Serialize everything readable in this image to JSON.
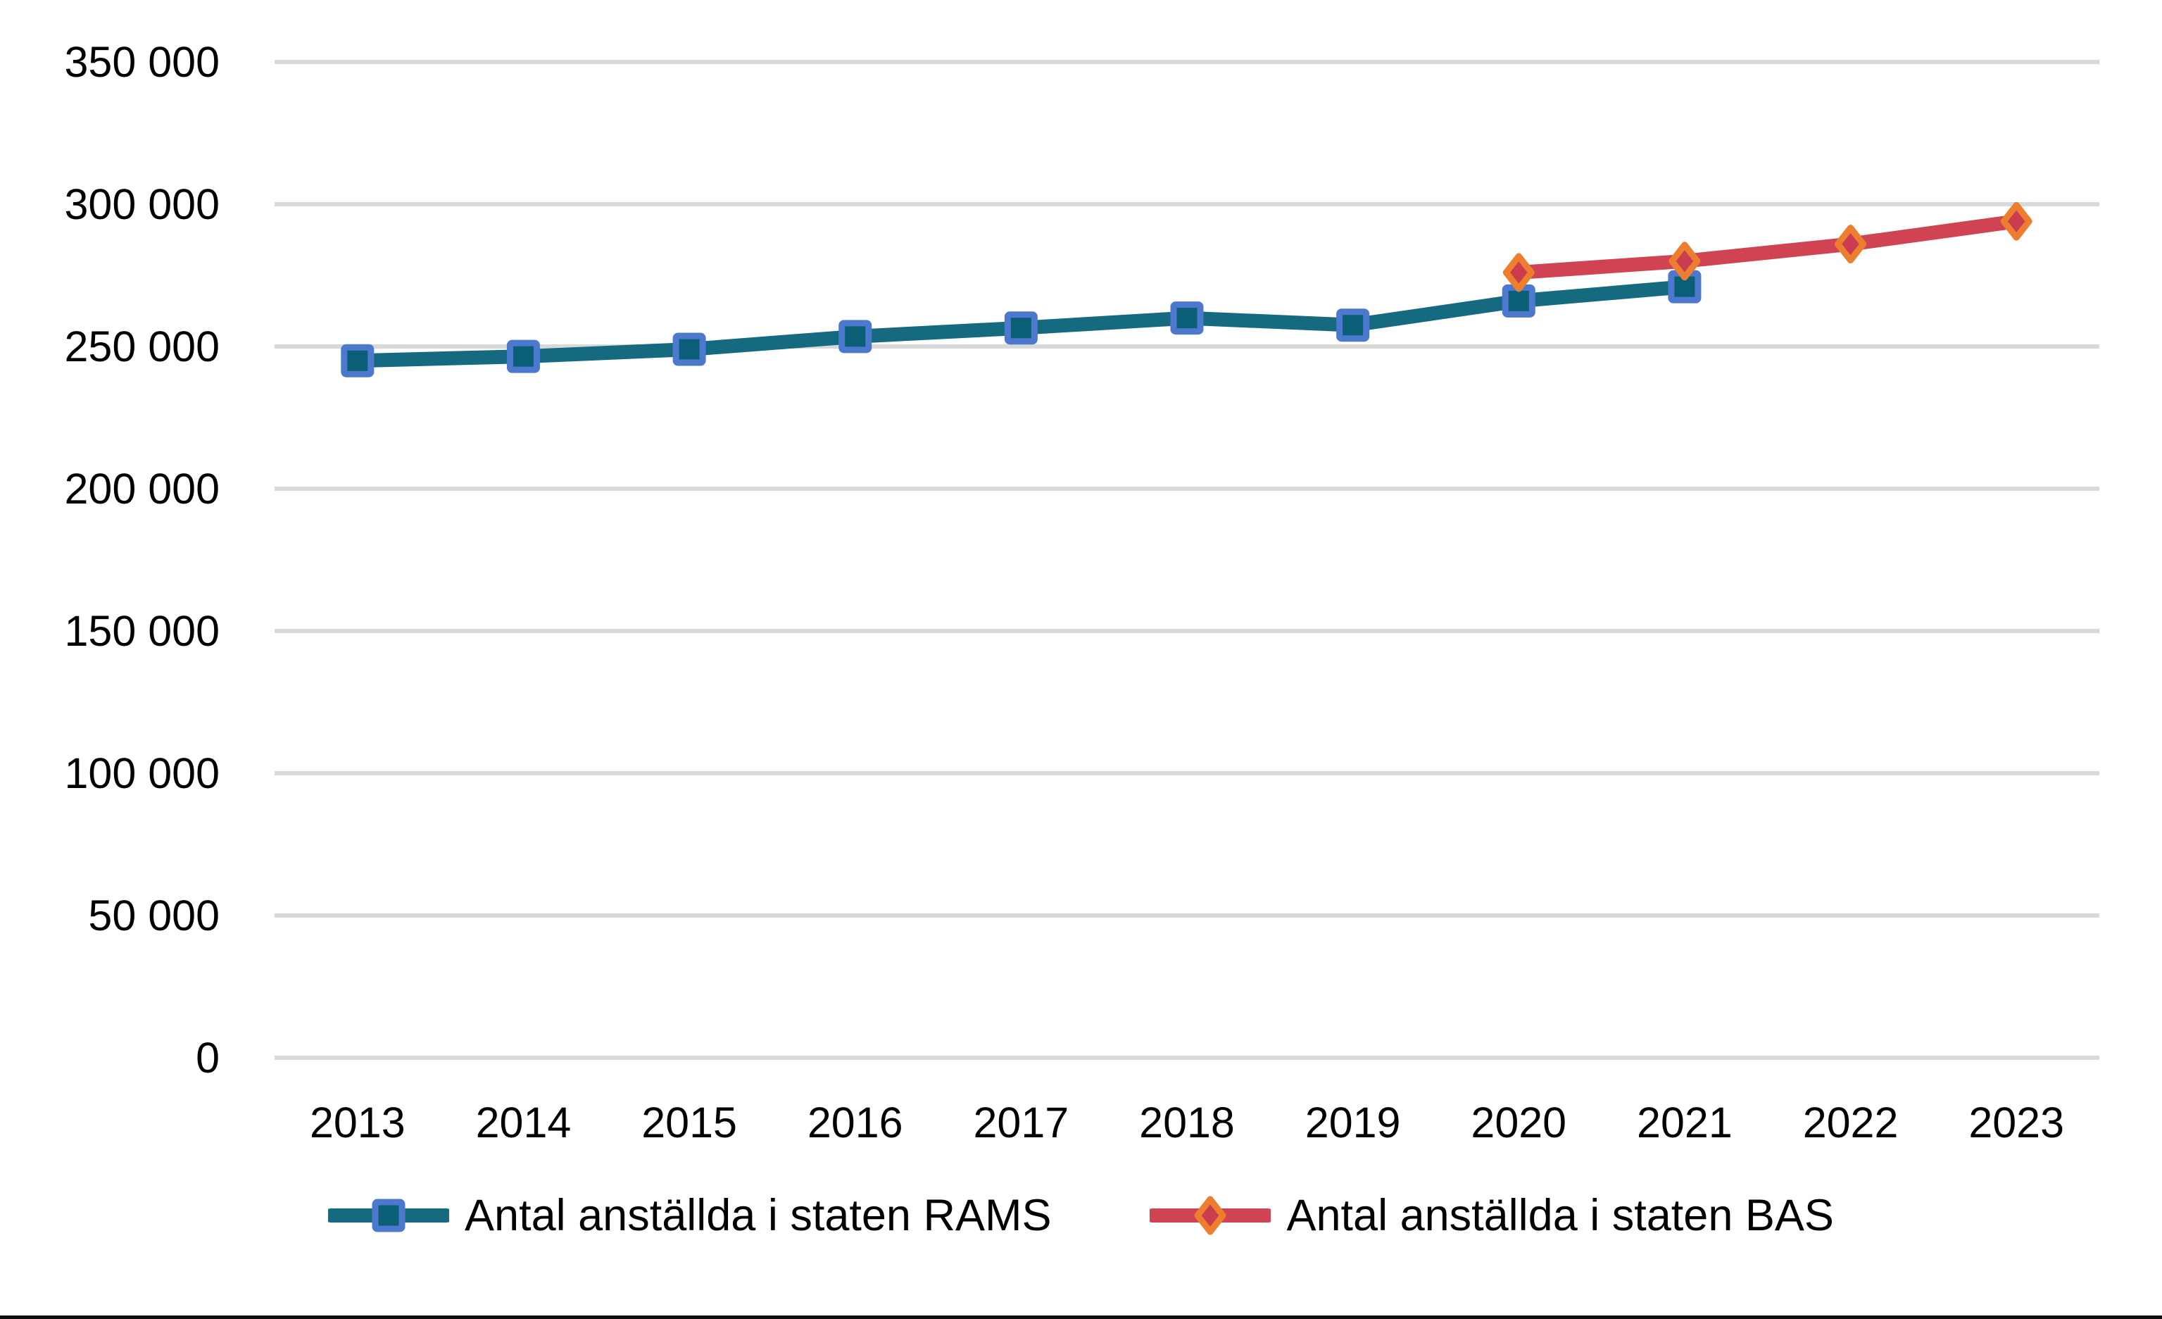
{
  "page": {
    "background_color": "#FFFFFF",
    "bottom_border_color": "#0D0D0D"
  },
  "chart_data": {
    "type": "line",
    "title": "",
    "xlabel": "",
    "ylabel": "",
    "categories": [
      "2013",
      "2014",
      "2015",
      "2016",
      "2017",
      "2018",
      "2019",
      "2020",
      "2021",
      "2022",
      "2023"
    ],
    "series": [
      {
        "name": "Antal anställda i staten RAMS",
        "marker": "square",
        "line_color": "#166A80",
        "marker_fill": "#0A5E76",
        "marker_border": "#4C79CE",
        "values": [
          245000,
          246500,
          249000,
          253500,
          256500,
          260000,
          257500,
          266000,
          271000,
          null,
          null
        ]
      },
      {
        "name": "Antal anställda i staten BAS",
        "marker": "diamond",
        "line_color": "#D04353",
        "marker_fill": "#CB3C4F",
        "marker_border": "#EE7E2F",
        "values": [
          null,
          null,
          null,
          null,
          null,
          null,
          null,
          276000,
          280000,
          286000,
          294000
        ]
      }
    ],
    "ylim": [
      0,
      350000
    ],
    "ytick_step": 50000,
    "ytick_labels": [
      "0",
      "50 000",
      "100 000",
      "150 000",
      "200 000",
      "250 000",
      "300 000",
      "350 000"
    ],
    "grid": true,
    "gridline_color": "#D9D9D9",
    "text_color": "#000000",
    "legend_position": "bottom"
  }
}
